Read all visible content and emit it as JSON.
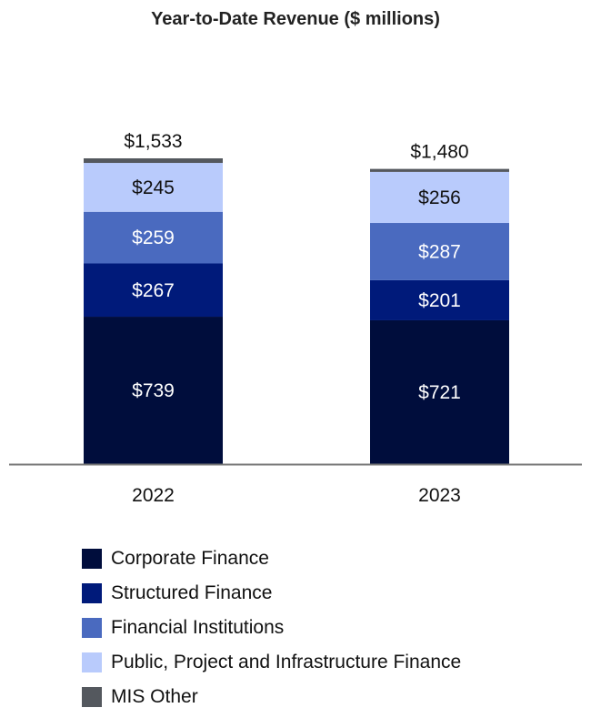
{
  "chart_data": {
    "type": "bar",
    "stacked": true,
    "title": "Year-to-Date Revenue ($ millions)",
    "categories": [
      "2022",
      "2023"
    ],
    "series": [
      {
        "name": "Corporate Finance",
        "values": [
          739,
          721
        ],
        "labels": [
          "$739",
          "$721"
        ],
        "color": "#000d3c"
      },
      {
        "name": "Structured Finance",
        "values": [
          267,
          201
        ],
        "labels": [
          "$267",
          "$201"
        ],
        "color": "#001a7a"
      },
      {
        "name": "Financial Institutions",
        "values": [
          259,
          287
        ],
        "labels": [
          "$259",
          "$287"
        ],
        "color": "#4a6abf"
      },
      {
        "name": "Public, Project and Infrastructure Finance",
        "values": [
          245,
          256
        ],
        "labels": [
          "$245",
          "$256"
        ],
        "color": "#b9cbfc"
      },
      {
        "name": "MIS Other",
        "values": [
          23,
          15
        ],
        "labels": [
          "",
          ""
        ],
        "color": "#54585e"
      }
    ],
    "totals": [
      "$1,533",
      "$1,480"
    ],
    "total_values": [
      1533,
      1480
    ],
    "grid": false,
    "legend": "bottom"
  }
}
